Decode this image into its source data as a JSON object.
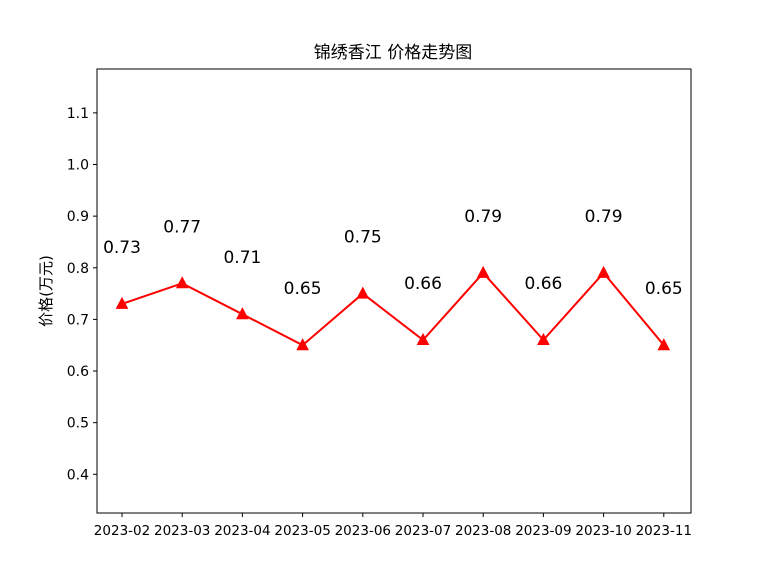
{
  "chart_data": {
    "type": "line",
    "title": "锦绣香江 价格走势图",
    "xlabel": "",
    "ylabel": "价格(万元)",
    "categories": [
      "2023-02",
      "2023-03",
      "2023-04",
      "2023-05",
      "2023-06",
      "2023-07",
      "2023-08",
      "2023-09",
      "2023-10",
      "2023-11"
    ],
    "series": [
      {
        "values": [
          0.73,
          0.77,
          0.71,
          0.65,
          0.75,
          0.66,
          0.79,
          0.66,
          0.79,
          0.65
        ],
        "labels": [
          "0.73",
          "0.77",
          "0.71",
          "0.65",
          "0.75",
          "0.66",
          "0.79",
          "0.66",
          "0.79",
          "0.65"
        ],
        "color": "#ff0000",
        "marker": "triangle"
      }
    ],
    "ylim": [
      0.325,
      1.185
    ],
    "yticks": [
      0.4,
      0.5,
      0.6,
      0.7,
      0.8,
      0.9,
      1.0,
      1.1
    ],
    "ytick_labels": [
      "0.4",
      "0.5",
      "0.6",
      "0.7",
      "0.8",
      "0.9",
      "1.0",
      "1.1"
    ],
    "grid": false,
    "legend": "none"
  }
}
